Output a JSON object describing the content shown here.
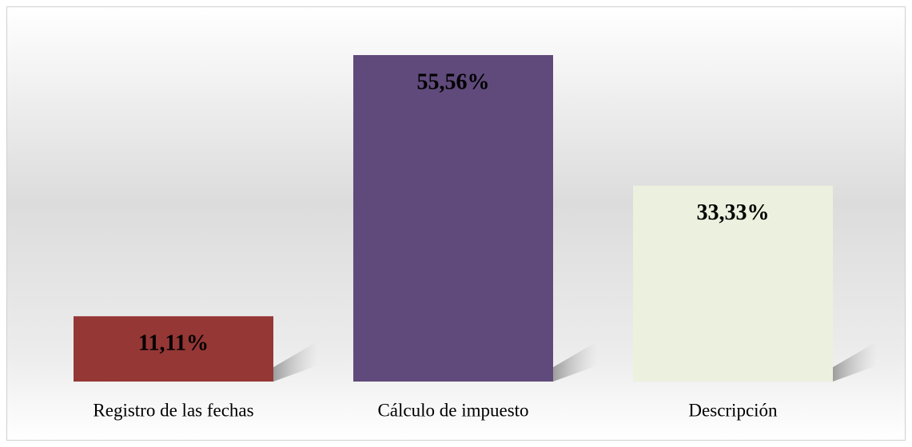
{
  "chart_data": {
    "type": "bar",
    "categories": [
      "Registro de las fechas",
      "Cálculo de impuesto",
      "Descripción"
    ],
    "values": [
      11.11,
      55.56,
      33.33
    ],
    "value_labels": [
      "11,11%",
      "55,56%",
      "33,33%"
    ],
    "colors": [
      "#953735",
      "#604a7b",
      "#ebf1de"
    ]
  }
}
